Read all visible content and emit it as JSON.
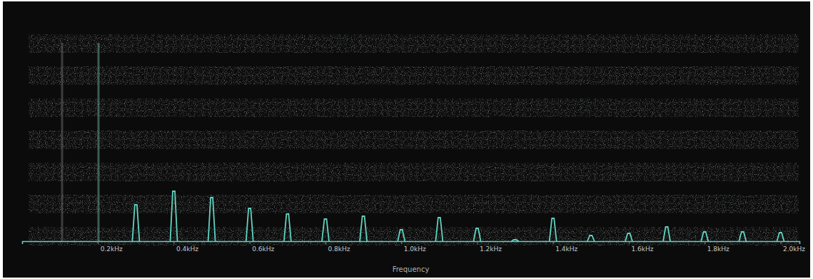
{
  "chart_data": {
    "type": "line",
    "xlabel": "Frequency",
    "x": [
      0.3,
      0.4,
      0.5,
      0.6,
      0.7,
      0.8,
      0.9,
      1.0,
      1.1,
      1.2,
      1.3,
      1.4,
      1.5,
      1.6,
      1.7,
      1.8,
      1.9,
      2.0
    ],
    "values": [
      51,
      70,
      61,
      46,
      38,
      31,
      35,
      16,
      33,
      18,
      2,
      32,
      8,
      11,
      20,
      13,
      13,
      12
    ],
    "color": "#5fd3c0",
    "marker": "spike",
    "xlim": [
      0,
      2.05
    ],
    "xticks": [
      {
        "value": 0.2,
        "label": "0.2kHz"
      },
      {
        "value": 0.4,
        "label": "0.4kHz"
      },
      {
        "value": 0.6,
        "label": "0.6kHz"
      },
      {
        "value": 0.8,
        "label": "0.8kHz"
      },
      {
        "value": 1.0,
        "label": "1.0kHz"
      },
      {
        "value": 1.2,
        "label": "1.2kHz"
      },
      {
        "value": 1.4,
        "label": "1.4kHz"
      },
      {
        "value": 1.6,
        "label": "1.6kHz"
      },
      {
        "value": 1.8,
        "label": "1.8kHz"
      },
      {
        "value": 2.0,
        "label": "2.0kHz"
      }
    ],
    "ylim": [
      0,
      320
    ],
    "tick_labels": "x",
    "grid": false
  }
}
